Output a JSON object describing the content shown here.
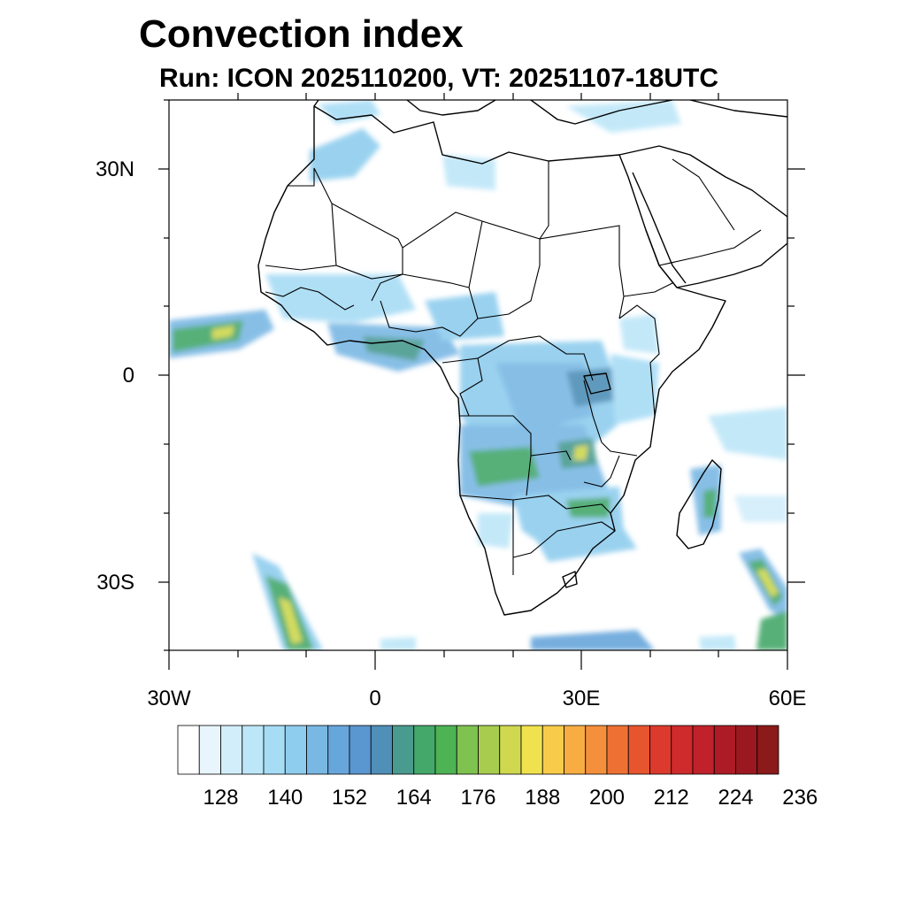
{
  "title": "Convection index",
  "subtitle": "Run: ICON 2025110200,  VT: 20251107-18UTC",
  "axes": {
    "lat_labels": [
      "30N",
      "0",
      "30S"
    ],
    "lon_labels": [
      "30W",
      "0",
      "30E",
      "60E"
    ],
    "lon_range": [
      -30,
      60
    ],
    "lat_range": [
      -40,
      40
    ]
  },
  "colorbar": {
    "labels": [
      "128",
      "140",
      "152",
      "164",
      "176",
      "188",
      "200",
      "212",
      "224",
      "236"
    ],
    "colors": [
      "#ffffff",
      "#e8f5fc",
      "#d2eefa",
      "#bde6f8",
      "#a7dcf5",
      "#8fcdee",
      "#7ab8e4",
      "#67a6db",
      "#5a96cf",
      "#4f8fb8",
      "#4a9b8f",
      "#44a86a",
      "#4db354",
      "#7fc250",
      "#a8cd4e",
      "#cfd84e",
      "#f0e24e",
      "#f9cb4a",
      "#f8ad43",
      "#f4903c",
      "#ee7134",
      "#e6552e",
      "#dc3a2c",
      "#cf2a2c",
      "#c0212b",
      "#ad1b26",
      "#9c1820",
      "#8b1a1a"
    ]
  },
  "legend_colors": {
    "low": "#a7dcf5",
    "mid": "#67a6db",
    "green": "#44a86a",
    "high": "#f0e24e"
  }
}
